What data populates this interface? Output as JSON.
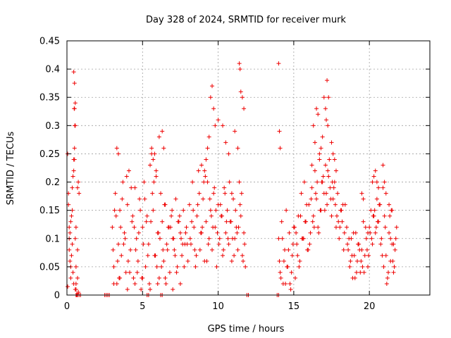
{
  "chart_data": {
    "type": "scatter",
    "title": "Day 328 of 2024, SRMTID for receiver murk",
    "xlabel": "GPS time / hours",
    "ylabel": "SRMTID / TECUs",
    "xlim": [
      0,
      24
    ],
    "ylim": [
      0,
      0.45
    ],
    "grid": true,
    "color": "#ee0000",
    "marker": "plus",
    "xticks": [
      {
        "value": 0,
        "label": "0"
      },
      {
        "value": 5,
        "label": "5"
      },
      {
        "value": 10,
        "label": "10"
      },
      {
        "value": 15,
        "label": "15"
      },
      {
        "value": 20,
        "label": "20"
      }
    ],
    "yticks": [
      {
        "value": 0,
        "label": "0"
      },
      {
        "value": 0.05,
        "label": "0.05"
      },
      {
        "value": 0.1,
        "label": "0.1"
      },
      {
        "value": 0.15,
        "label": "0.15"
      },
      {
        "value": 0.2,
        "label": "0.2"
      },
      {
        "value": 0.25,
        "label": "0.25"
      },
      {
        "value": 0.3,
        "label": "0.3"
      },
      {
        "value": 0.35,
        "label": "0.35"
      },
      {
        "value": 0.4,
        "label": "0.4"
      },
      {
        "value": 0.45,
        "label": "0.45"
      }
    ],
    "series": [
      {
        "name": "SRMTID",
        "x": [
          0.05,
          0.1,
          0.15,
          0.2,
          0.25,
          0.3,
          0.35,
          0.4,
          0.45,
          0.5,
          0.55,
          0.6,
          0.1,
          0.2,
          0.3,
          0.4,
          0.5,
          0.6,
          0.15,
          0.25,
          0.35,
          0.45,
          0.55,
          0.45,
          0.5,
          0.55,
          0.48,
          0.52,
          0.5,
          0.45,
          0.55,
          0.6,
          0.65,
          0.7,
          0.75,
          0.8,
          0.7,
          0.75,
          0.05,
          0.15,
          0.25,
          0.35,
          0.6,
          0.7,
          3.0,
          3.1,
          3.2,
          3.3,
          3.4,
          3.5,
          3.6,
          3.7,
          3.8,
          3.9,
          4.0,
          4.1,
          4.2,
          4.3,
          4.4,
          4.5,
          4.6,
          4.7,
          4.8,
          4.9,
          5.0,
          5.1,
          5.2,
          5.3,
          5.4,
          5.5,
          5.6,
          5.7,
          5.8,
          5.9,
          6.0,
          6.1,
          6.2,
          6.3,
          6.4,
          6.5,
          6.6,
          6.7,
          6.8,
          6.9,
          7.0,
          7.1,
          7.2,
          7.3,
          7.4,
          7.5,
          7.6,
          7.7,
          7.8,
          7.9,
          8.0,
          3.05,
          3.25,
          3.45,
          3.65,
          3.85,
          4.05,
          4.25,
          4.45,
          4.65,
          4.85,
          5.05,
          5.25,
          5.45,
          5.65,
          5.85,
          6.05,
          6.25,
          6.45,
          6.65,
          6.85,
          7.05,
          7.25,
          7.45,
          7.65,
          7.85,
          3.15,
          3.35,
          3.55,
          3.75,
          3.95,
          4.15,
          4.35,
          4.55,
          4.75,
          4.95,
          5.15,
          5.35,
          5.55,
          5.75,
          5.95,
          6.15,
          6.35,
          6.55,
          6.75,
          6.95,
          7.15,
          7.35,
          7.55,
          7.75,
          7.95,
          3.1,
          3.5,
          4.0,
          4.5,
          5.0,
          5.5,
          6.0,
          6.5,
          7.0,
          7.5,
          5.6,
          5.7,
          5.8,
          5.9,
          6.1,
          6.3,
          6.4,
          3.3,
          3.4,
          8.1,
          8.2,
          8.3,
          8.4,
          8.5,
          8.6,
          8.7,
          8.8,
          8.9,
          9.0,
          9.1,
          9.2,
          9.3,
          9.4,
          9.5,
          9.6,
          9.7,
          9.8,
          9.9,
          10.0,
          10.1,
          10.2,
          10.3,
          10.4,
          10.5,
          10.6,
          10.7,
          10.8,
          10.9,
          11.0,
          11.1,
          11.2,
          11.3,
          11.4,
          11.5,
          11.6,
          11.7,
          11.8,
          8.15,
          8.35,
          8.55,
          8.75,
          8.95,
          9.15,
          9.35,
          9.55,
          9.75,
          9.95,
          10.15,
          10.35,
          10.55,
          10.75,
          10.95,
          11.15,
          11.35,
          11.55,
          11.75,
          8.25,
          8.45,
          8.65,
          8.85,
          9.05,
          9.25,
          9.45,
          9.65,
          9.85,
          10.05,
          10.25,
          10.45,
          10.65,
          10.85,
          11.05,
          11.25,
          11.45,
          11.65,
          9.5,
          9.6,
          9.7,
          9.8,
          9.4,
          9.3,
          10.3,
          10.5,
          10.7,
          11.4,
          11.45,
          11.5,
          11.6,
          11.7,
          9.2,
          9.1,
          8.9,
          11.3,
          11.1,
          10.0,
          10.9,
          14.0,
          14.1,
          14.2,
          14.3,
          14.4,
          14.5,
          14.6,
          14.7,
          14.8,
          14.9,
          15.0,
          15.1,
          15.2,
          15.3,
          15.4,
          15.5,
          15.6,
          15.7,
          15.8,
          15.9,
          16.0,
          16.1,
          16.2,
          16.3,
          16.4,
          16.5,
          16.6,
          16.7,
          16.8,
          16.9,
          17.0,
          17.1,
          17.2,
          17.3,
          17.4,
          17.5,
          17.6,
          17.7,
          17.8,
          17.9,
          18.0,
          18.1,
          18.2,
          18.3,
          18.4,
          14.05,
          14.25,
          14.45,
          14.65,
          14.85,
          15.05,
          15.25,
          15.45,
          15.65,
          15.85,
          16.05,
          16.25,
          16.45,
          16.65,
          16.85,
          17.05,
          17.25,
          17.45,
          17.65,
          17.85,
          18.05,
          18.25,
          14.15,
          14.35,
          14.55,
          14.75,
          14.95,
          15.15,
          15.35,
          15.55,
          15.75,
          15.95,
          16.15,
          16.35,
          16.55,
          16.75,
          16.95,
          17.15,
          17.35,
          17.55,
          17.75,
          17.95,
          18.15,
          18.35,
          14.0,
          14.05,
          14.1,
          16.3,
          16.4,
          16.5,
          16.6,
          16.7,
          17.0,
          17.1,
          17.2,
          17.3,
          17.15,
          17.25,
          16.9,
          17.5,
          17.6,
          17.7,
          17.8,
          16.2,
          16.8,
          18.5,
          18.6,
          18.7,
          18.8,
          18.9,
          19.0,
          19.1,
          19.2,
          19.3,
          19.4,
          19.5,
          19.6,
          19.7,
          19.8,
          19.9,
          20.0,
          20.1,
          20.2,
          20.3,
          20.4,
          20.5,
          20.6,
          20.7,
          20.8,
          20.9,
          21.0,
          21.1,
          21.2,
          21.3,
          21.4,
          21.5,
          21.6,
          21.7,
          21.8,
          18.55,
          18.75,
          18.95,
          19.15,
          19.35,
          19.55,
          19.75,
          19.95,
          20.15,
          20.35,
          20.55,
          20.75,
          20.95,
          21.15,
          21.35,
          21.55,
          21.75,
          18.65,
          18.85,
          19.05,
          19.25,
          19.45,
          19.65,
          19.85,
          20.05,
          20.25,
          20.45,
          20.65,
          20.85,
          21.05,
          21.25,
          21.45,
          21.65,
          19.5,
          19.6,
          20.2,
          20.3,
          20.4,
          20.5,
          20.6,
          21.0,
          21.1,
          21.3,
          21.4,
          21.5,
          21.6,
          20.9,
          19.9,
          0.6,
          0.7,
          0.8,
          0.9,
          2.5,
          2.6,
          2.7,
          2.8,
          5.3,
          5.4,
          6.2,
          6.3,
          11.9,
          12.0,
          13.9,
          14.0
        ],
        "y": [
          0.25,
          0.18,
          0.12,
          0.06,
          0.03,
          0.14,
          0.09,
          0.21,
          0.02,
          0.33,
          0.3,
          0.05,
          0.16,
          0.11,
          0.07,
          0.04,
          0.24,
          0.01,
          0.08,
          0.13,
          0.19,
          0.22,
          0.1,
          0.395,
          0.375,
          0.34,
          0.33,
          0.3,
          0.26,
          0.24,
          0.01,
          0.02,
          0.0,
          0.19,
          0.2,
          0.18,
          0.03,
          0.005,
          0.015,
          0.1,
          0.05,
          0.15,
          0.12,
          0.08,
          0.12,
          0.05,
          0.18,
          0.02,
          0.09,
          0.15,
          0.07,
          0.2,
          0.11,
          0.04,
          0.16,
          0.22,
          0.08,
          0.13,
          0.03,
          0.19,
          0.1,
          0.06,
          0.17,
          0.01,
          0.12,
          0.2,
          0.05,
          0.14,
          0.09,
          0.23,
          0.25,
          0.15,
          0.07,
          0.21,
          0.11,
          0.03,
          0.18,
          0.13,
          0.06,
          0.16,
          0.09,
          0.12,
          0.04,
          0.14,
          0.1,
          0.08,
          0.17,
          0.05,
          0.13,
          0.11,
          0.07,
          0.15,
          0.09,
          0.12,
          0.06,
          0.08,
          0.14,
          0.03,
          0.17,
          0.1,
          0.06,
          0.19,
          0.12,
          0.04,
          0.15,
          0.09,
          0.13,
          0.02,
          0.18,
          0.07,
          0.11,
          0.05,
          0.16,
          0.08,
          0.12,
          0.1,
          0.04,
          0.14,
          0.09,
          0.11,
          0.15,
          0.06,
          0.12,
          0.09,
          0.21,
          0.04,
          0.14,
          0.08,
          0.11,
          0.03,
          0.17,
          0.07,
          0.13,
          0.2,
          0.05,
          0.1,
          0.08,
          0.02,
          0.12,
          0.15,
          0.07,
          0.13,
          0.1,
          0.05,
          0.09,
          0.02,
          0.03,
          0.01,
          0.02,
          0.03,
          0.01,
          0.02,
          0.03,
          0.01,
          0.02,
          0.26,
          0.24,
          0.25,
          0.22,
          0.28,
          0.29,
          0.26,
          0.26,
          0.25,
          0.16,
          0.09,
          0.2,
          0.12,
          0.05,
          0.14,
          0.22,
          0.08,
          0.11,
          0.17,
          0.06,
          0.13,
          0.2,
          0.1,
          0.15,
          0.08,
          0.18,
          0.12,
          0.05,
          0.16,
          0.1,
          0.14,
          0.07,
          0.19,
          0.11,
          0.15,
          0.09,
          0.13,
          0.06,
          0.17,
          0.1,
          0.12,
          0.08,
          0.2,
          0.14,
          0.07,
          0.11,
          0.05,
          0.1,
          0.15,
          0.07,
          0.18,
          0.12,
          0.21,
          0.09,
          0.14,
          0.19,
          0.11,
          0.16,
          0.08,
          0.13,
          0.2,
          0.1,
          0.15,
          0.12,
          0.18,
          0.09,
          0.13,
          0.08,
          0.16,
          0.11,
          0.2,
          0.06,
          0.17,
          0.12,
          0.15,
          0.09,
          0.14,
          0.18,
          0.1,
          0.13,
          0.07,
          0.11,
          0.16,
          0.06,
          0.35,
          0.37,
          0.33,
          0.3,
          0.28,
          0.26,
          0.3,
          0.27,
          0.25,
          0.41,
          0.4,
          0.36,
          0.35,
          0.33,
          0.24,
          0.22,
          0.23,
          0.26,
          0.29,
          0.31,
          0.18,
          0.1,
          0.04,
          0.13,
          0.02,
          0.08,
          0.15,
          0.05,
          0.11,
          0.01,
          0.07,
          0.12,
          0.03,
          0.09,
          0.14,
          0.06,
          0.18,
          0.1,
          0.2,
          0.13,
          0.08,
          0.16,
          0.11,
          0.19,
          0.14,
          0.22,
          0.17,
          0.12,
          0.24,
          0.15,
          0.2,
          0.18,
          0.23,
          0.16,
          0.21,
          0.19,
          0.14,
          0.17,
          0.2,
          0.12,
          0.18,
          0.1,
          0.15,
          0.13,
          0.08,
          0.16,
          0.06,
          0.1,
          0.02,
          0.08,
          0.04,
          0.12,
          0.07,
          0.14,
          0.1,
          0.16,
          0.09,
          0.13,
          0.18,
          0.11,
          0.2,
          0.15,
          0.22,
          0.17,
          0.19,
          0.14,
          0.12,
          0.16,
          0.03,
          0.06,
          0.05,
          0.02,
          0.09,
          0.11,
          0.05,
          0.1,
          0.13,
          0.08,
          0.17,
          0.12,
          0.2,
          0.15,
          0.21,
          0.18,
          0.24,
          0.2,
          0.16,
          0.13,
          0.15,
          0.11,
          0.41,
          0.29,
          0.26,
          0.3,
          0.27,
          0.33,
          0.32,
          0.25,
          0.35,
          0.33,
          0.38,
          0.35,
          0.31,
          0.3,
          0.28,
          0.27,
          0.25,
          0.24,
          0.22,
          0.23,
          0.26,
          0.12,
          0.08,
          0.05,
          0.1,
          0.03,
          0.07,
          0.11,
          0.06,
          0.09,
          0.04,
          0.08,
          0.13,
          0.07,
          0.1,
          0.05,
          0.12,
          0.15,
          0.09,
          0.14,
          0.11,
          0.17,
          0.13,
          0.16,
          0.1,
          0.19,
          0.14,
          0.07,
          0.03,
          0.11,
          0.06,
          0.09,
          0.04,
          0.08,
          0.12,
          0.09,
          0.06,
          0.11,
          0.04,
          0.08,
          0.05,
          0.12,
          0.07,
          0.1,
          0.15,
          0.13,
          0.09,
          0.05,
          0.02,
          0.14,
          0.06,
          0.1,
          0.1,
          0.07,
          0.03,
          0.09,
          0.06,
          0.04,
          0.08,
          0.11,
          0.14,
          0.12,
          0.16,
          0.07,
          0.12,
          0.04,
          0.15,
          0.05,
          0.18,
          0.17,
          0.2,
          0.21,
          0.22,
          0.2,
          0.19,
          0.2,
          0.18,
          0.16,
          0.1,
          0.15,
          0.09,
          0.23,
          0.11,
          0.0,
          0.0,
          0.0,
          0.0,
          0.0,
          0.0,
          0.0,
          0.0,
          0.0,
          0.0,
          0.0,
          0.0,
          0.0,
          0.0,
          0.0,
          0.0
        ]
      }
    ]
  }
}
